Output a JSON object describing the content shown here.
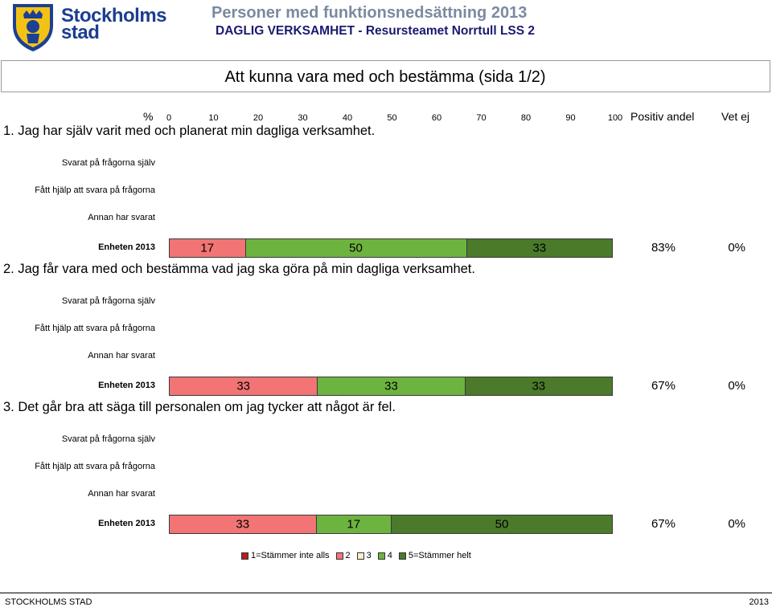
{
  "header": {
    "brand_line1": "Stockholms",
    "brand_line2": "stad",
    "title": "Personer med funktionsnedsättning 2013",
    "subtitle": "DAGLIG VERKSAMHET - Resursteamet Norrtull LSS 2"
  },
  "section_title": "Att kunna vara med och bestämma (sida 1/2)",
  "axis": {
    "label": "%",
    "ticks": [
      "0",
      "10",
      "20",
      "30",
      "40",
      "50",
      "60",
      "70",
      "80",
      "90",
      "100"
    ],
    "col_positive": "Positiv andel",
    "col_vetej": "Vet ej"
  },
  "colors": {
    "c1": "#b41f24",
    "c2": "#f27474",
    "c3": "#f5efc9",
    "c4": "#6db33f",
    "c5": "#4a7a2a"
  },
  "chart_data": {
    "type": "bar",
    "orientation": "horizontal",
    "stacked": true,
    "xlim": [
      0,
      100
    ],
    "xlabel": "%",
    "legend": {
      "position": "bottom",
      "entries": [
        "1=Stämmer inte alls",
        "2",
        "3",
        "4",
        "5=Stämmer helt"
      ]
    },
    "questions": [
      {
        "title": "1. Jag har själv varit med och planerat min dagliga verksamhet.",
        "rows": [
          {
            "label": "Svarat på frågorna själv"
          },
          {
            "label": "Fått hjälp att svara på frågorna"
          },
          {
            "label": "Annan har svarat"
          },
          {
            "label": "Enheten 2013",
            "segments": [
              {
                "category": 2,
                "value": 17,
                "label": "17"
              },
              {
                "category": 4,
                "value": 50,
                "label": "50"
              },
              {
                "category": 5,
                "value": 33,
                "label": "33"
              }
            ],
            "positive": "83%",
            "vetej": "0%"
          }
        ]
      },
      {
        "title": "2. Jag får vara med och bestämma vad jag ska göra på min dagliga verksamhet.",
        "rows": [
          {
            "label": "Svarat på frågorna själv"
          },
          {
            "label": "Fått hjälp att svara på frågorna"
          },
          {
            "label": "Annan har svarat"
          },
          {
            "label": "Enheten 2013",
            "segments": [
              {
                "category": 2,
                "value": 33,
                "label": "33"
              },
              {
                "category": 4,
                "value": 33,
                "label": "33"
              },
              {
                "category": 5,
                "value": 33,
                "label": "33"
              }
            ],
            "positive": "67%",
            "vetej": "0%"
          }
        ]
      },
      {
        "title": "3. Det går bra att säga till personalen om jag tycker att något är fel.",
        "rows": [
          {
            "label": "Svarat på frågorna själv"
          },
          {
            "label": "Fått hjälp att svara på frågorna"
          },
          {
            "label": "Annan har svarat"
          },
          {
            "label": "Enheten 2013",
            "segments": [
              {
                "category": 2,
                "value": 33,
                "label": "33"
              },
              {
                "category": 4,
                "value": 17,
                "label": "17"
              },
              {
                "category": 5,
                "value": 50,
                "label": "50"
              }
            ],
            "positive": "67%",
            "vetej": "0%"
          }
        ]
      }
    ]
  },
  "footer": {
    "left": "STOCKHOLMS STAD",
    "right": "2013"
  }
}
